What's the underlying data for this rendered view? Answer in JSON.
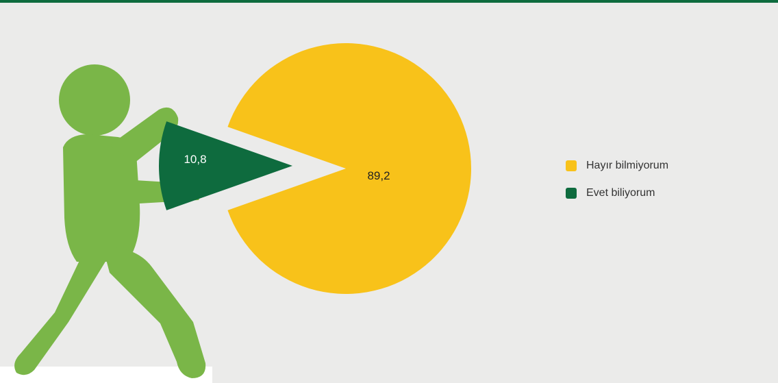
{
  "colors": {
    "yes": "#0e6b3e",
    "no": "#f8c21a",
    "figure": "#7ab648",
    "rule": "#0e6b3e"
  },
  "chart_data": {
    "type": "pie",
    "slices": [
      {
        "name": "Hayır bilmiyorum",
        "value": 89.2,
        "label": "89,2",
        "color": "#f8c21a"
      },
      {
        "name": "Evet biliyorum",
        "value": 10.8,
        "label": "10,8",
        "color": "#0e6b3e"
      }
    ],
    "legend": {
      "position": "right",
      "items": [
        {
          "label": "Hayır bilmiyorum",
          "color": "#f8c21a"
        },
        {
          "label": "Evet biliyorum",
          "color": "#0e6b3e"
        }
      ]
    }
  }
}
